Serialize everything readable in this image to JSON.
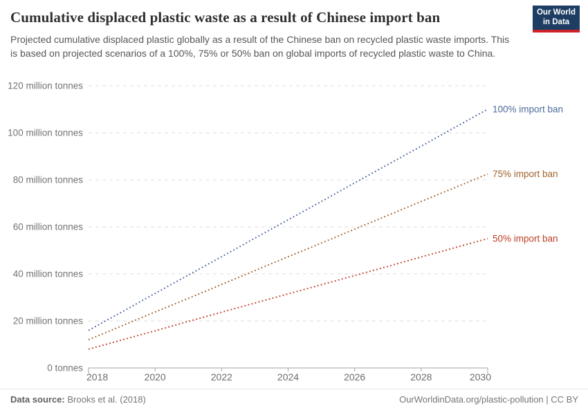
{
  "header": {
    "title": "Cumulative displaced plastic waste as a result of Chinese import ban",
    "subtitle": "Projected cumulative displaced plastic globally as a result of the Chinese ban on recycled plastic waste imports. This is based on projected scenarios of a 100%, 75% or 50% ban on global imports of recycled plastic waste to China.",
    "logo": {
      "line1": "Our World",
      "line2": "in Data",
      "bg_color": "#1d3d63",
      "accent_color": "#cf2128"
    }
  },
  "chart_data": {
    "type": "line",
    "title": "Cumulative displaced plastic waste as a result of Chinese import ban",
    "x": [
      2018,
      2019,
      2020,
      2021,
      2022,
      2023,
      2024,
      2025,
      2026,
      2027,
      2028,
      2029,
      2030
    ],
    "series": [
      {
        "name": "100% import ban",
        "color": "#4C6A9C",
        "values": [
          16.0,
          23.8,
          31.7,
          39.5,
          47.3,
          55.2,
          63.0,
          70.8,
          78.7,
          86.5,
          94.3,
          102.2,
          110.0
        ]
      },
      {
        "name": "75% import ban",
        "color": "#A2622B",
        "values": [
          12.0,
          17.9,
          23.8,
          29.6,
          35.5,
          41.4,
          47.3,
          53.1,
          59.0,
          64.9,
          70.8,
          76.6,
          82.5
        ]
      },
      {
        "name": "50% import ban",
        "color": "#BE3E25",
        "values": [
          8.0,
          11.9,
          15.8,
          19.8,
          23.7,
          27.6,
          31.5,
          35.4,
          39.3,
          43.2,
          47.2,
          51.1,
          55.0
        ]
      }
    ],
    "xlim": [
      2018,
      2030
    ],
    "ylim": [
      0,
      120
    ],
    "x_ticks": [
      2018,
      2020,
      2022,
      2024,
      2026,
      2028,
      2030
    ],
    "y_ticks": [
      {
        "value": 0,
        "label": "0 tonnes"
      },
      {
        "value": 20,
        "label": "20 million tonnes"
      },
      {
        "value": 40,
        "label": "40 million tonnes"
      },
      {
        "value": 60,
        "label": "60 million tonnes"
      },
      {
        "value": 80,
        "label": "80 million tonnes"
      },
      {
        "value": 100,
        "label": "100 million tonnes"
      },
      {
        "value": 120,
        "label": "120 million tonnes"
      }
    ],
    "grid": "horizontal dashed",
    "line_style": "dotted",
    "legend_position": "labels at right end of each line",
    "axis_color": "#a3a3a3",
    "grid_color": "#dcdcdc",
    "tick_label_color": "#737373"
  },
  "footer": {
    "datasource_label": "Data source:",
    "datasource_value": "Brooks et al. (2018)",
    "credit": "OurWorldinData.org/plastic-pollution | CC BY"
  }
}
